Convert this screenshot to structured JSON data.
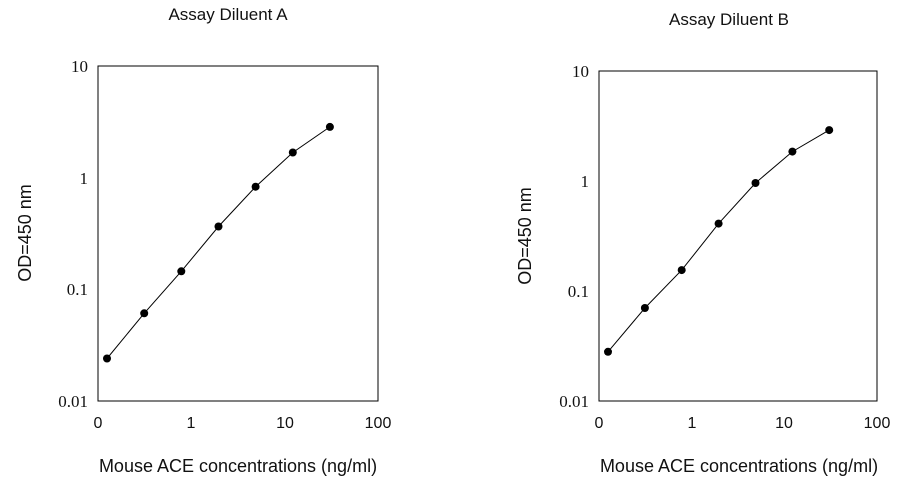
{
  "chart_data": [
    {
      "type": "line",
      "title": "Assay Diluent A",
      "xlabel": "Mouse ACE concentrations (ng/ml)",
      "ylabel": "OD=450 nm",
      "xscale": "log",
      "yscale": "log",
      "xlim": [
        0.1,
        100
      ],
      "ylim": [
        0.01,
        10
      ],
      "xticks": [
        "0",
        "1",
        "10",
        "100"
      ],
      "yticks": [
        "0.01",
        "0.1",
        "1",
        "10"
      ],
      "grid": false,
      "marker": "filled-circle",
      "color": "#000000",
      "series": [
        {
          "x": [
            0.125,
            0.3125,
            0.78125,
            1.953125,
            4.8828125,
            12.20703125,
            30.517578125
          ],
          "y": [
            0.024,
            0.061,
            0.145,
            0.365,
            0.83,
            1.68,
            2.85
          ]
        }
      ]
    },
    {
      "type": "line",
      "title": "Assay Diluent B",
      "xlabel": "Mouse ACE concentrations (ng/ml)",
      "ylabel": "OD=450 nm",
      "xscale": "log",
      "yscale": "log",
      "xlim": [
        0.1,
        100
      ],
      "ylim": [
        0.01,
        10
      ],
      "xticks": [
        "0",
        "1",
        "10",
        "100"
      ],
      "yticks": [
        "0.01",
        "0.1",
        "1",
        "10"
      ],
      "grid": false,
      "marker": "filled-circle",
      "color": "#000000",
      "series": [
        {
          "x": [
            0.125,
            0.3125,
            0.78125,
            1.953125,
            4.8828125,
            12.20703125,
            30.517578125
          ],
          "y": [
            0.028,
            0.07,
            0.155,
            0.41,
            0.96,
            1.85,
            2.9
          ]
        }
      ]
    }
  ]
}
